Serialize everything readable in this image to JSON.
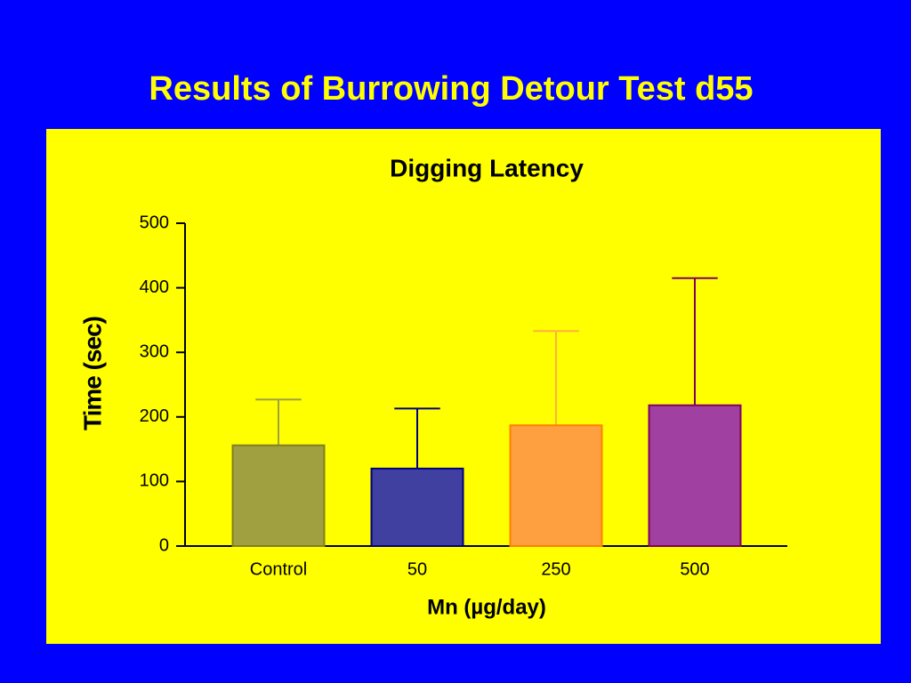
{
  "slide_title": "Results of Burrowing Detour Test d55",
  "chart_data": {
    "type": "bar",
    "title": "Digging Latency",
    "x_label": "Mn (µg/day)",
    "y_label": "Time (sec)",
    "categories": [
      "Control",
      "50",
      "250",
      "500"
    ],
    "values": [
      156,
      120,
      187,
      218
    ],
    "errors": [
      71,
      93,
      146,
      197
    ],
    "colors": [
      "#a0a040",
      "#4040a0",
      "#ffa040",
      "#a040a0"
    ],
    "edge_colors": [
      "#808020",
      "#000080",
      "#ff8000",
      "#800060"
    ],
    "error_colors": [
      "#a0a040",
      "#000080",
      "#ffb040",
      "#800060"
    ],
    "ylim": [
      0,
      500
    ],
    "yticks": [
      0,
      100,
      200,
      300,
      400,
      500
    ],
    "grid": false
  }
}
